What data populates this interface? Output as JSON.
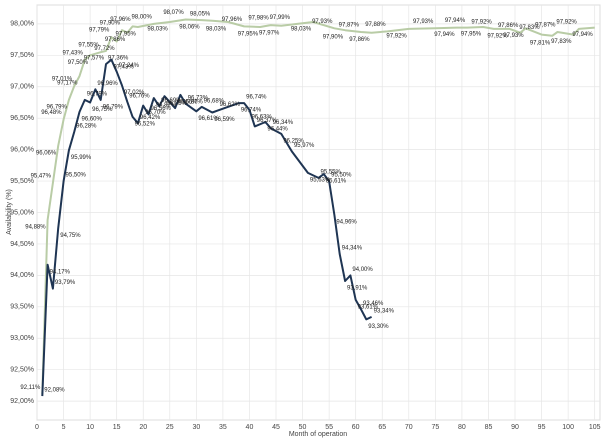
{
  "chart_data": {
    "type": "line",
    "y_label": "Availability (%)",
    "x_label": "Month of operation",
    "xlim": [
      0,
      106
    ],
    "xticks": [
      0,
      5,
      10,
      15,
      20,
      25,
      30,
      35,
      40,
      45,
      50,
      55,
      60,
      65,
      70,
      75,
      80,
      85,
      90,
      95,
      100,
      105
    ],
    "ylim": [
      91.7,
      98.3
    ],
    "yticks": [
      {
        "value": 92,
        "label": "92,00%"
      },
      {
        "value": 92.5,
        "label": "92,50%"
      },
      {
        "value": 93,
        "label": "93,00%"
      },
      {
        "value": 93.5,
        "label": "93,50%"
      },
      {
        "value": 94,
        "label": "94,00%"
      },
      {
        "value": 94.5,
        "label": "94,50%"
      },
      {
        "value": 95,
        "label": "95,00%"
      },
      {
        "value": 95.5,
        "label": "95,50%"
      },
      {
        "value": 96,
        "label": "96,00%"
      },
      {
        "value": 96.5,
        "label": "96,50%"
      },
      {
        "value": 97,
        "label": "97,00%"
      },
      {
        "value": 97.5,
        "label": "97,50%"
      },
      {
        "value": 98,
        "label": "98,00%"
      }
    ],
    "grid": true,
    "series": [
      {
        "color": "#b9cca6",
        "x": [
          1,
          2,
          3,
          4,
          5,
          6,
          7,
          8,
          9,
          10,
          12,
          13,
          14,
          15,
          16,
          17,
          18,
          19,
          22,
          25,
          28,
          31,
          33,
          36,
          39,
          42,
          44,
          46,
          48,
          52,
          56,
          58,
          61,
          63,
          66,
          70,
          75,
          79,
          81,
          84,
          86,
          89,
          91,
          92,
          95,
          97,
          98,
          101,
          102,
          105
        ],
        "values": [
          92.11,
          94.88,
          95.47,
          96.06,
          96.48,
          96.79,
          97.01,
          97.17,
          97.43,
          97.5,
          97.55,
          97.57,
          97.79,
          97.72,
          97.9,
          97.86,
          97.96,
          97.95,
          98.0,
          98.03,
          98.07,
          98.06,
          98.05,
          98.03,
          97.96,
          97.95,
          97.98,
          97.97,
          97.99,
          98.03,
          97.93,
          97.9,
          97.87,
          97.86,
          97.88,
          97.92,
          97.93,
          97.94,
          97.94,
          97.95,
          97.92,
          97.92,
          97.86,
          97.93,
          97.83,
          97.81,
          97.87,
          97.83,
          97.92,
          97.94
        ],
        "value_labels": [
          "92,11%",
          "94,88%",
          "95,47%",
          "96,06%",
          "96,48%",
          "96,79%",
          "97,01%",
          "97,17%",
          "97,43%",
          "97,50%",
          "97,55%",
          "97,57%",
          "97,79%",
          "97,72%",
          "97,90%",
          "97,86%",
          "97,96%",
          "97,95%",
          "98,00%",
          "98,03%",
          "98,07%",
          "98,06%",
          "98,05%",
          "98,03%",
          "97,96%",
          "97,95%",
          "97,98%",
          "97,97%",
          "97,99%",
          "98,03%",
          "97,93%",
          "97,90%",
          "97,87%",
          "97,86%",
          "97,88%",
          "97,92%",
          "97,93%",
          "97,94%",
          "97,94%",
          "97,95%",
          "97,92%",
          "97,92%",
          "97,86%",
          "97,93%",
          "97,83%",
          "97,81%",
          "97,87%",
          "97,83%",
          "97,92%",
          "97,94%"
        ]
      },
      {
        "color": "#1f3553",
        "x": [
          1,
          2,
          3,
          4,
          5,
          6,
          7,
          8,
          9,
          10,
          11,
          12,
          13,
          14,
          15,
          16,
          17,
          18,
          19,
          20,
          21,
          22,
          23,
          24,
          26,
          27,
          28,
          30,
          31,
          33,
          34,
          38,
          39,
          40,
          41,
          43,
          44,
          46,
          48,
          51,
          53,
          54,
          55,
          56,
          57,
          58,
          59,
          60,
          61,
          62,
          63
        ],
        "values": [
          92.08,
          94.17,
          93.79,
          94.75,
          95.5,
          95.99,
          96.28,
          96.6,
          96.79,
          96.75,
          96.96,
          96.79,
          97.36,
          97.43,
          97.24,
          97.02,
          96.76,
          96.52,
          96.42,
          96.7,
          96.56,
          96.82,
          96.69,
          96.85,
          96.66,
          96.87,
          96.73,
          96.61,
          96.68,
          96.59,
          96.62,
          96.74,
          96.74,
          96.63,
          96.37,
          96.44,
          96.34,
          96.25,
          95.97,
          95.63,
          95.55,
          95.61,
          95.5,
          94.96,
          94.34,
          93.91,
          94.0,
          93.61,
          93.46,
          93.3,
          93.34
        ],
        "value_labels": [
          "92,08%",
          "94,17%",
          "93,79%",
          "94,75%",
          "95,50%",
          "95,99%",
          "96,28%",
          "96,60%",
          "96,79%",
          "96,75%",
          "96,96%",
          "96,79%",
          "97,36%",
          "97,43%",
          "97,24%",
          "97,02%",
          "96,76%",
          "96,52%",
          "96,42%",
          "96,70%",
          "96,56%",
          "96,82%",
          "96,69%",
          "96,85%",
          "96,66%",
          "96,87%",
          "96,73%",
          "96,61%",
          "96,68%",
          "96,59%",
          "96,62%",
          "96,74%",
          "96,74%",
          "96,63%",
          "96,37%",
          "96,44%",
          "96,34%",
          "96,25%",
          "95,97%",
          "95,63%",
          "95,55%",
          "95,61%",
          "95,50%",
          "94,96%",
          "94,34%",
          "93,91%",
          "94,00%",
          "93,61%",
          "93,46%",
          "93,30%",
          "93,34%"
        ]
      }
    ]
  }
}
